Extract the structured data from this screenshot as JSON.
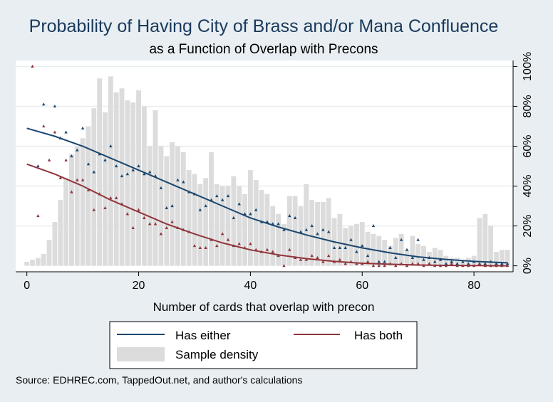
{
  "chart_data": {
    "type": "line",
    "title": "Probability of Having City of Brass and/or Mana Confluence",
    "subtitle": "as a Function of Overlap with Precons",
    "xlabel": "Number of cards that overlap with precon",
    "ylabel": "",
    "xlim": [
      -2,
      87
    ],
    "ylim": [
      -0.03,
      1.03
    ],
    "x_ticks": [
      0,
      20,
      40,
      60,
      80
    ],
    "x_tick_labels": [
      "0",
      "20",
      "40",
      "60",
      "80"
    ],
    "y_ticks": [
      0,
      0.2,
      0.4,
      0.6,
      0.8,
      1.0
    ],
    "y_tick_labels": [
      "0%",
      "20%",
      "40%",
      "60%",
      "80%",
      "100%"
    ],
    "y_axis_side": "right",
    "grid": "horizontal",
    "colors": {
      "either": "#1a476f",
      "both": "#90353b",
      "density": "#dcdcdc",
      "background": "#e8eef2",
      "plot_background": "#ffffff"
    },
    "series": [
      {
        "name": "Has either",
        "kind": "fitted-line",
        "x": [
          0,
          5,
          10,
          15,
          20,
          25,
          30,
          35,
          40,
          45,
          50,
          55,
          60,
          65,
          70,
          75,
          80,
          86
        ],
        "values": [
          0.69,
          0.65,
          0.6,
          0.54,
          0.48,
          0.42,
          0.36,
          0.3,
          0.24,
          0.195,
          0.155,
          0.12,
          0.09,
          0.065,
          0.045,
          0.032,
          0.022,
          0.015
        ]
      },
      {
        "name": "Has both",
        "kind": "fitted-line",
        "x": [
          0,
          5,
          10,
          15,
          20,
          25,
          30,
          35,
          40,
          45,
          50,
          55,
          60,
          65,
          70,
          75,
          80,
          86
        ],
        "values": [
          0.51,
          0.46,
          0.4,
          0.33,
          0.27,
          0.21,
          0.16,
          0.115,
          0.08,
          0.055,
          0.036,
          0.022,
          0.013,
          0.008,
          0.004,
          0.002,
          0.001,
          0.0
        ]
      },
      {
        "name": "Has either",
        "kind": "scatter",
        "x": [
          2,
          3,
          5,
          6,
          7,
          8,
          9,
          10,
          11,
          12,
          13,
          14,
          15,
          16,
          17,
          18,
          19,
          20,
          21,
          22,
          23,
          24,
          25,
          26,
          27,
          28,
          29,
          30,
          31,
          32,
          33,
          34,
          35,
          36,
          37,
          38,
          39,
          40,
          41,
          42,
          43,
          44,
          45,
          46,
          47,
          48,
          49,
          50,
          51,
          52,
          53,
          54,
          55,
          56,
          57,
          58,
          59,
          60,
          61,
          62,
          63,
          64,
          65,
          66,
          67,
          68,
          69,
          70,
          71,
          72,
          73,
          74,
          75,
          76,
          77,
          78,
          79,
          80,
          81,
          82,
          83,
          84,
          85,
          86
        ],
        "values": [
          0.5,
          0.81,
          0.8,
          0.64,
          0.67,
          0.55,
          0.58,
          0.69,
          0.51,
          0.47,
          0.56,
          0.53,
          0.6,
          0.5,
          0.45,
          0.46,
          0.48,
          0.5,
          0.46,
          0.47,
          0.45,
          0.39,
          0.29,
          0.3,
          0.43,
          0.42,
          0.37,
          0.36,
          0.28,
          0.3,
          0.33,
          0.35,
          0.33,
          0.35,
          0.24,
          0.31,
          0.26,
          0.26,
          0.28,
          0.22,
          0.22,
          0.21,
          0.21,
          0.18,
          0.25,
          0.24,
          0.17,
          0.18,
          0.2,
          0.16,
          0.18,
          0.17,
          0.09,
          0.09,
          0.09,
          0.13,
          0.07,
          0.1,
          0.05,
          0.2,
          0.02,
          0.02,
          0.09,
          0.04,
          0.13,
          0.08,
          0.04,
          0.13,
          0.03,
          0.04,
          0.02,
          0.03,
          0.01,
          0.02,
          0.01,
          0.02,
          0.01,
          0.02,
          0.01,
          0.01,
          0.02,
          0.01,
          0.01,
          0.01
        ]
      },
      {
        "name": "Has both",
        "kind": "scatter",
        "x": [
          1,
          2,
          3,
          4,
          5,
          6,
          7,
          8,
          9,
          10,
          11,
          12,
          13,
          14,
          15,
          16,
          17,
          18,
          19,
          20,
          21,
          22,
          23,
          24,
          25,
          26,
          27,
          28,
          29,
          30,
          31,
          32,
          33,
          34,
          35,
          36,
          37,
          38,
          39,
          40,
          41,
          42,
          43,
          44,
          45,
          46,
          47,
          48,
          49,
          50,
          51,
          52,
          53,
          54,
          55,
          56,
          57,
          58,
          59,
          60,
          61,
          62,
          63,
          64,
          65,
          66,
          67,
          68,
          69,
          70,
          71,
          72,
          73,
          74,
          75,
          76,
          77,
          78,
          79,
          80,
          81,
          82,
          83,
          84,
          85,
          86
        ],
        "values": [
          1.0,
          0.25,
          0.7,
          0.53,
          0.67,
          0.44,
          0.53,
          0.37,
          0.43,
          0.43,
          0.38,
          0.28,
          0.36,
          0.29,
          0.34,
          0.34,
          0.31,
          0.26,
          0.19,
          0.28,
          0.24,
          0.21,
          0.21,
          0.16,
          0.19,
          0.22,
          0.19,
          0.18,
          0.17,
          0.1,
          0.09,
          0.09,
          0.13,
          0.1,
          0.16,
          0.13,
          0.1,
          0.11,
          0.09,
          0.11,
          0.08,
          0.07,
          0.08,
          0.07,
          0.05,
          0.0,
          0.08,
          0.04,
          0.03,
          0.03,
          0.05,
          0.04,
          0.02,
          0.05,
          0.02,
          0.03,
          0.01,
          0.02,
          0.01,
          0.01,
          0.02,
          0.0,
          0.0,
          0.0,
          0.01,
          0.0,
          0.01,
          0.0,
          0.01,
          0.01,
          0.0,
          0.01,
          0.0,
          0.0,
          0.0,
          0.01,
          0.0,
          0.0,
          0.0,
          0.0,
          0.01,
          0.0,
          0.0,
          0.0,
          0.0,
          0.0
        ]
      },
      {
        "name": "Sample density",
        "kind": "bars",
        "x": [
          0,
          1,
          2,
          3,
          4,
          5,
          6,
          7,
          8,
          9,
          10,
          11,
          12,
          13,
          14,
          15,
          16,
          17,
          18,
          19,
          20,
          21,
          22,
          23,
          24,
          25,
          26,
          27,
          28,
          29,
          30,
          31,
          32,
          33,
          34,
          35,
          36,
          37,
          38,
          39,
          40,
          41,
          42,
          43,
          44,
          45,
          46,
          47,
          48,
          49,
          50,
          51,
          52,
          53,
          54,
          55,
          56,
          57,
          58,
          59,
          60,
          61,
          62,
          63,
          64,
          65,
          66,
          67,
          68,
          69,
          70,
          71,
          72,
          73,
          74,
          75,
          76,
          77,
          78,
          79,
          80,
          81,
          82,
          83,
          84,
          85,
          86
        ],
        "values": [
          0.02,
          0.03,
          0.04,
          0.06,
          0.13,
          0.22,
          0.33,
          0.44,
          0.56,
          0.6,
          0.64,
          0.7,
          0.79,
          0.94,
          0.77,
          0.95,
          0.87,
          0.89,
          0.83,
          0.82,
          0.88,
          0.8,
          0.6,
          0.78,
          0.6,
          0.55,
          0.62,
          0.6,
          0.57,
          0.48,
          0.46,
          0.41,
          0.44,
          0.57,
          0.41,
          0.4,
          0.4,
          0.45,
          0.4,
          0.36,
          0.48,
          0.43,
          0.38,
          0.36,
          0.3,
          0.26,
          0.21,
          0.35,
          0.35,
          0.3,
          0.41,
          0.33,
          0.32,
          0.32,
          0.34,
          0.24,
          0.26,
          0.19,
          0.2,
          0.21,
          0.22,
          0.17,
          0.16,
          0.15,
          0.13,
          0.1,
          0.14,
          0.16,
          0.08,
          0.15,
          0.11,
          0.1,
          0.07,
          0.09,
          0.08,
          0.05,
          0.04,
          0.04,
          0.03,
          0.04,
          0.05,
          0.24,
          0.26,
          0.2,
          0.07,
          0.08,
          0.08
        ]
      }
    ],
    "legend": {
      "placement": "bottom",
      "entries": [
        "Has either",
        "Has both",
        "Sample density"
      ]
    },
    "note": "Source: EDHREC.com, TappedOut.net, and author's calculations"
  }
}
